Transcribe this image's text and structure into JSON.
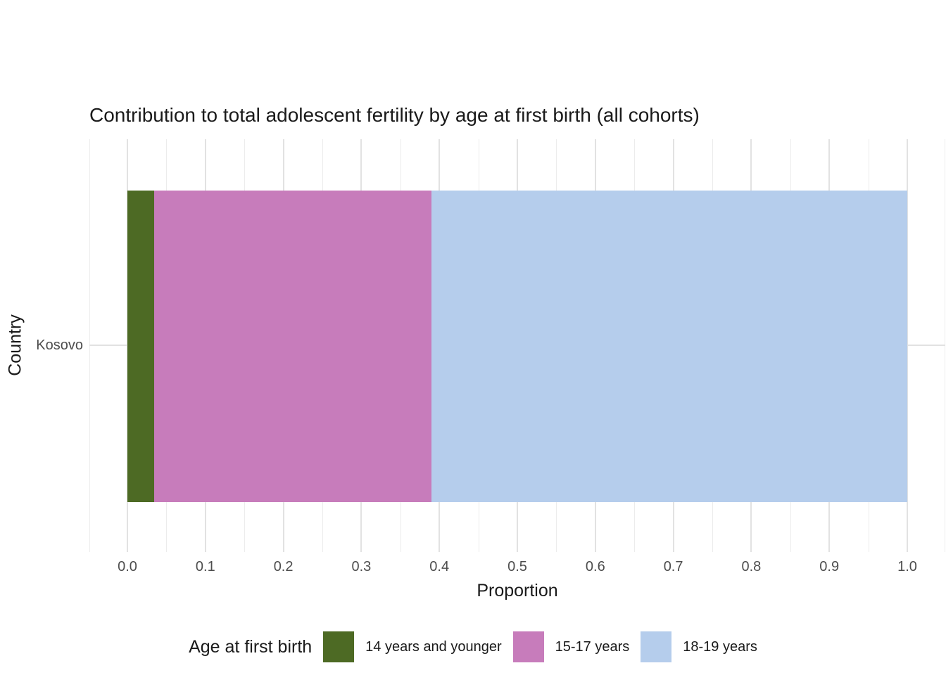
{
  "chart_data": {
    "type": "bar",
    "orientation": "horizontal-stacked",
    "title": "Contribution to total adolescent fertility by age at first birth (all cohorts)",
    "xlabel": "Proportion",
    "ylabel": "Country",
    "categories": [
      "Kosovo"
    ],
    "series": [
      {
        "name": "14 years and younger",
        "color": "#4D6A24",
        "values": [
          0.034
        ]
      },
      {
        "name": "15-17 years",
        "color": "#C77CBB",
        "values": [
          0.356
        ]
      },
      {
        "name": "18-19 years",
        "color": "#B5CDEC",
        "values": [
          0.61
        ]
      }
    ],
    "xlim": [
      0,
      1
    ],
    "x_ticks": [
      "0.0",
      "0.1",
      "0.2",
      "0.3",
      "0.4",
      "0.5",
      "0.6",
      "0.7",
      "0.8",
      "0.9",
      "1.0"
    ],
    "x_tick_values": [
      0.0,
      0.1,
      0.2,
      0.3,
      0.4,
      0.5,
      0.6,
      0.7,
      0.8,
      0.9,
      1.0
    ],
    "grid": "on",
    "legend_title": "Age at first birth",
    "legend_position": "bottom",
    "colors": {
      "grid_major": "#e2e2e2",
      "grid_minor": "#ececec",
      "axis_text": "#4d4d4d",
      "text": "#1a1a1a",
      "background": "#ffffff"
    }
  }
}
